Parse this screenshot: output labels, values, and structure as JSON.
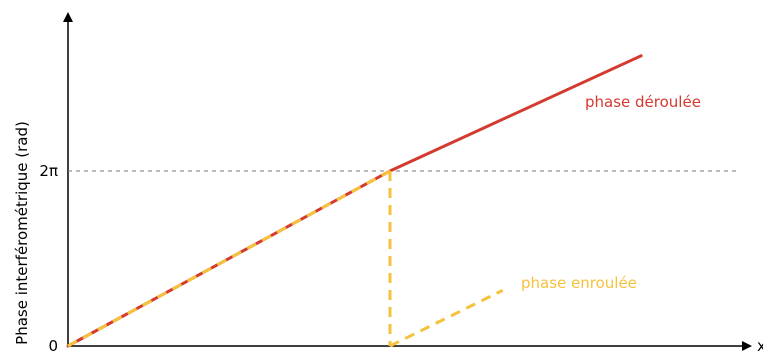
{
  "chart_data": {
    "type": "line",
    "xlabel": "x",
    "ylabel": "Phase interférométrique (rad)",
    "y_ticks": [
      {
        "value": 0,
        "label": "0"
      },
      {
        "value": 6.2832,
        "label": "2π"
      }
    ],
    "xlim": [
      0,
      2.13
    ],
    "ylim": [
      0,
      10.8
    ],
    "grid": false,
    "reference_lines": [
      {
        "y": 6.2832,
        "style": "dashed",
        "color": "#777777"
      }
    ],
    "series": [
      {
        "name": "phase déroulée",
        "color": "#d43a30",
        "style": "solid",
        "points": [
          [
            0,
            0
          ],
          [
            1,
            6.2832
          ],
          [
            1.78,
            10.42
          ]
        ]
      },
      {
        "name": "phase enroulée",
        "color": "#f5c23c",
        "style": "dashed",
        "segments": [
          [
            [
              0,
              0
            ],
            [
              1,
              6.2832
            ]
          ],
          [
            [
              1,
              6.2832
            ],
            [
              1,
              0
            ]
          ],
          [
            [
              1,
              0
            ],
            [
              1.35,
              2.0
            ]
          ]
        ]
      }
    ]
  }
}
